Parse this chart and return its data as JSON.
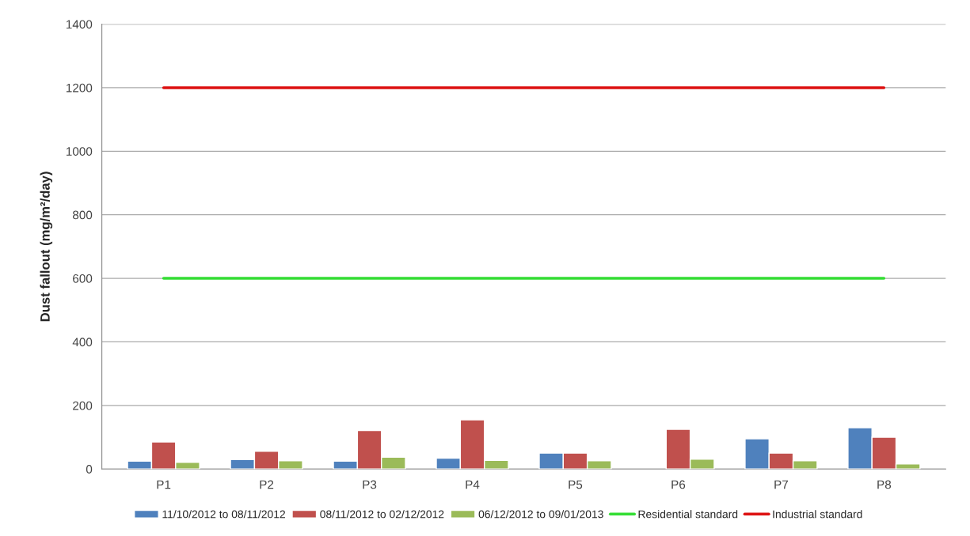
{
  "chart_data": {
    "type": "bar",
    "ylabel": "Dust fallout (mg/m²/day)",
    "categories": [
      "P1",
      "P2",
      "P3",
      "P4",
      "P5",
      "P6",
      "P7",
      "P8"
    ],
    "series": [
      {
        "name": "11/10/2012 to 08/11/2012",
        "color": "#4f81bd",
        "values": [
          25,
          30,
          25,
          34,
          50,
          null,
          95,
          130
        ]
      },
      {
        "name": "08/11/2012 to 02/12/2012",
        "color": "#c0504d",
        "values": [
          85,
          56,
          121,
          155,
          50,
          125,
          50,
          100
        ]
      },
      {
        "name": "06/12/2012 to 09/01/2013",
        "color": "#9bbb59",
        "values": [
          21,
          26,
          37,
          27,
          26,
          31,
          26,
          16
        ]
      },
      {
        "name": "Residential standard",
        "type": "line",
        "color": "#33dd33",
        "values": [
          600,
          600,
          600,
          600,
          600,
          600,
          600,
          600
        ]
      },
      {
        "name": "Industrial standard",
        "type": "line",
        "color": "#dd1111",
        "values": [
          1200,
          1200,
          1200,
          1200,
          1200,
          1200,
          1200,
          1200
        ]
      }
    ],
    "ylim": [
      0,
      1400
    ],
    "yticks": [
      0,
      200,
      400,
      600,
      800,
      1000,
      1200,
      1400
    ],
    "grid": "y",
    "legend": "bottom"
  }
}
